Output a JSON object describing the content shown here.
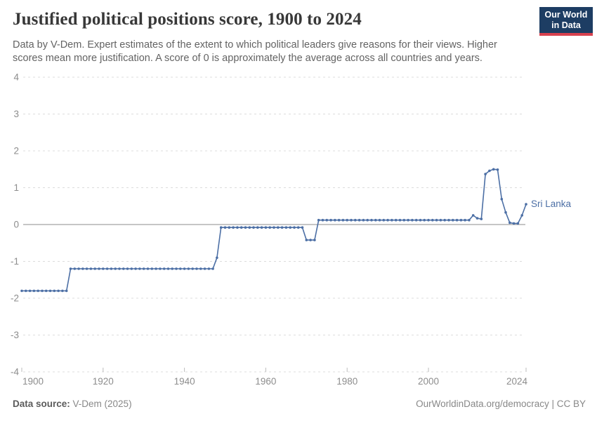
{
  "header": {
    "title": "Justified political positions score, 1900 to 2024",
    "subtitle_lines": [
      "Data by V-Dem. Expert estimates of the extent to which political leaders give reasons for their views. Higher",
      "scores mean more justification. A score of 0 is approximately the average across all countries and years."
    ],
    "logo": {
      "line1": "Our World",
      "line2": "in Data"
    }
  },
  "colors": {
    "series_blue": "#4c6fa5",
    "logo_navy": "#1d3d63",
    "logo_red": "#d7414e",
    "grid_gray": "#dcdcdc",
    "zero_line_gray": "#a3a3a3",
    "axis_text_gray": "#8d8d8d",
    "tick_gray": "#bdbdbd"
  },
  "chart_data": {
    "type": "line",
    "title": "Justified political positions score, 1900 to 2024",
    "xlabel": "",
    "ylabel": "",
    "xlim": [
      1900,
      2024
    ],
    "ylim": [
      -4,
      4
    ],
    "grid": "horizontal-dashed, zero line solid",
    "legend_position": "end-of-line label",
    "xticks": [
      1900,
      1920,
      1940,
      1960,
      1980,
      2000,
      2024
    ],
    "yticks": [
      -4,
      -3,
      -2,
      -1,
      0,
      1,
      2,
      3,
      4
    ],
    "series": [
      {
        "name": "Sri Lanka",
        "color": "#4c6fa5",
        "x_start": 1900,
        "x_step": 1,
        "values": [
          -1.8,
          -1.8,
          -1.8,
          -1.8,
          -1.8,
          -1.8,
          -1.8,
          -1.8,
          -1.8,
          -1.8,
          -1.8,
          -1.8,
          -1.2,
          -1.2,
          -1.2,
          -1.2,
          -1.2,
          -1.2,
          -1.2,
          -1.2,
          -1.2,
          -1.2,
          -1.2,
          -1.2,
          -1.2,
          -1.2,
          -1.2,
          -1.2,
          -1.2,
          -1.2,
          -1.2,
          -1.2,
          -1.2,
          -1.2,
          -1.2,
          -1.2,
          -1.2,
          -1.2,
          -1.2,
          -1.2,
          -1.2,
          -1.2,
          -1.2,
          -1.2,
          -1.2,
          -1.2,
          -1.2,
          -1.2,
          -0.9,
          -0.08,
          -0.08,
          -0.08,
          -0.08,
          -0.08,
          -0.08,
          -0.08,
          -0.08,
          -0.08,
          -0.08,
          -0.08,
          -0.08,
          -0.08,
          -0.08,
          -0.08,
          -0.08,
          -0.08,
          -0.08,
          -0.08,
          -0.08,
          -0.08,
          -0.42,
          -0.42,
          -0.42,
          0.12,
          0.12,
          0.12,
          0.12,
          0.12,
          0.12,
          0.12,
          0.12,
          0.12,
          0.12,
          0.12,
          0.12,
          0.12,
          0.12,
          0.12,
          0.12,
          0.12,
          0.12,
          0.12,
          0.12,
          0.12,
          0.12,
          0.12,
          0.12,
          0.12,
          0.12,
          0.12,
          0.12,
          0.12,
          0.12,
          0.12,
          0.12,
          0.12,
          0.12,
          0.12,
          0.12,
          0.12,
          0.12,
          0.25,
          0.17,
          0.15,
          1.37,
          1.46,
          1.5,
          1.49,
          0.69,
          0.33,
          0.05,
          0.03,
          0.03,
          0.25,
          0.55
        ]
      }
    ],
    "entity_label": "Sri Lanka"
  },
  "footer": {
    "source_label": "Data source:",
    "source_value": " V-Dem (2025)",
    "link": "OurWorldinData.org/democracy | CC BY"
  }
}
